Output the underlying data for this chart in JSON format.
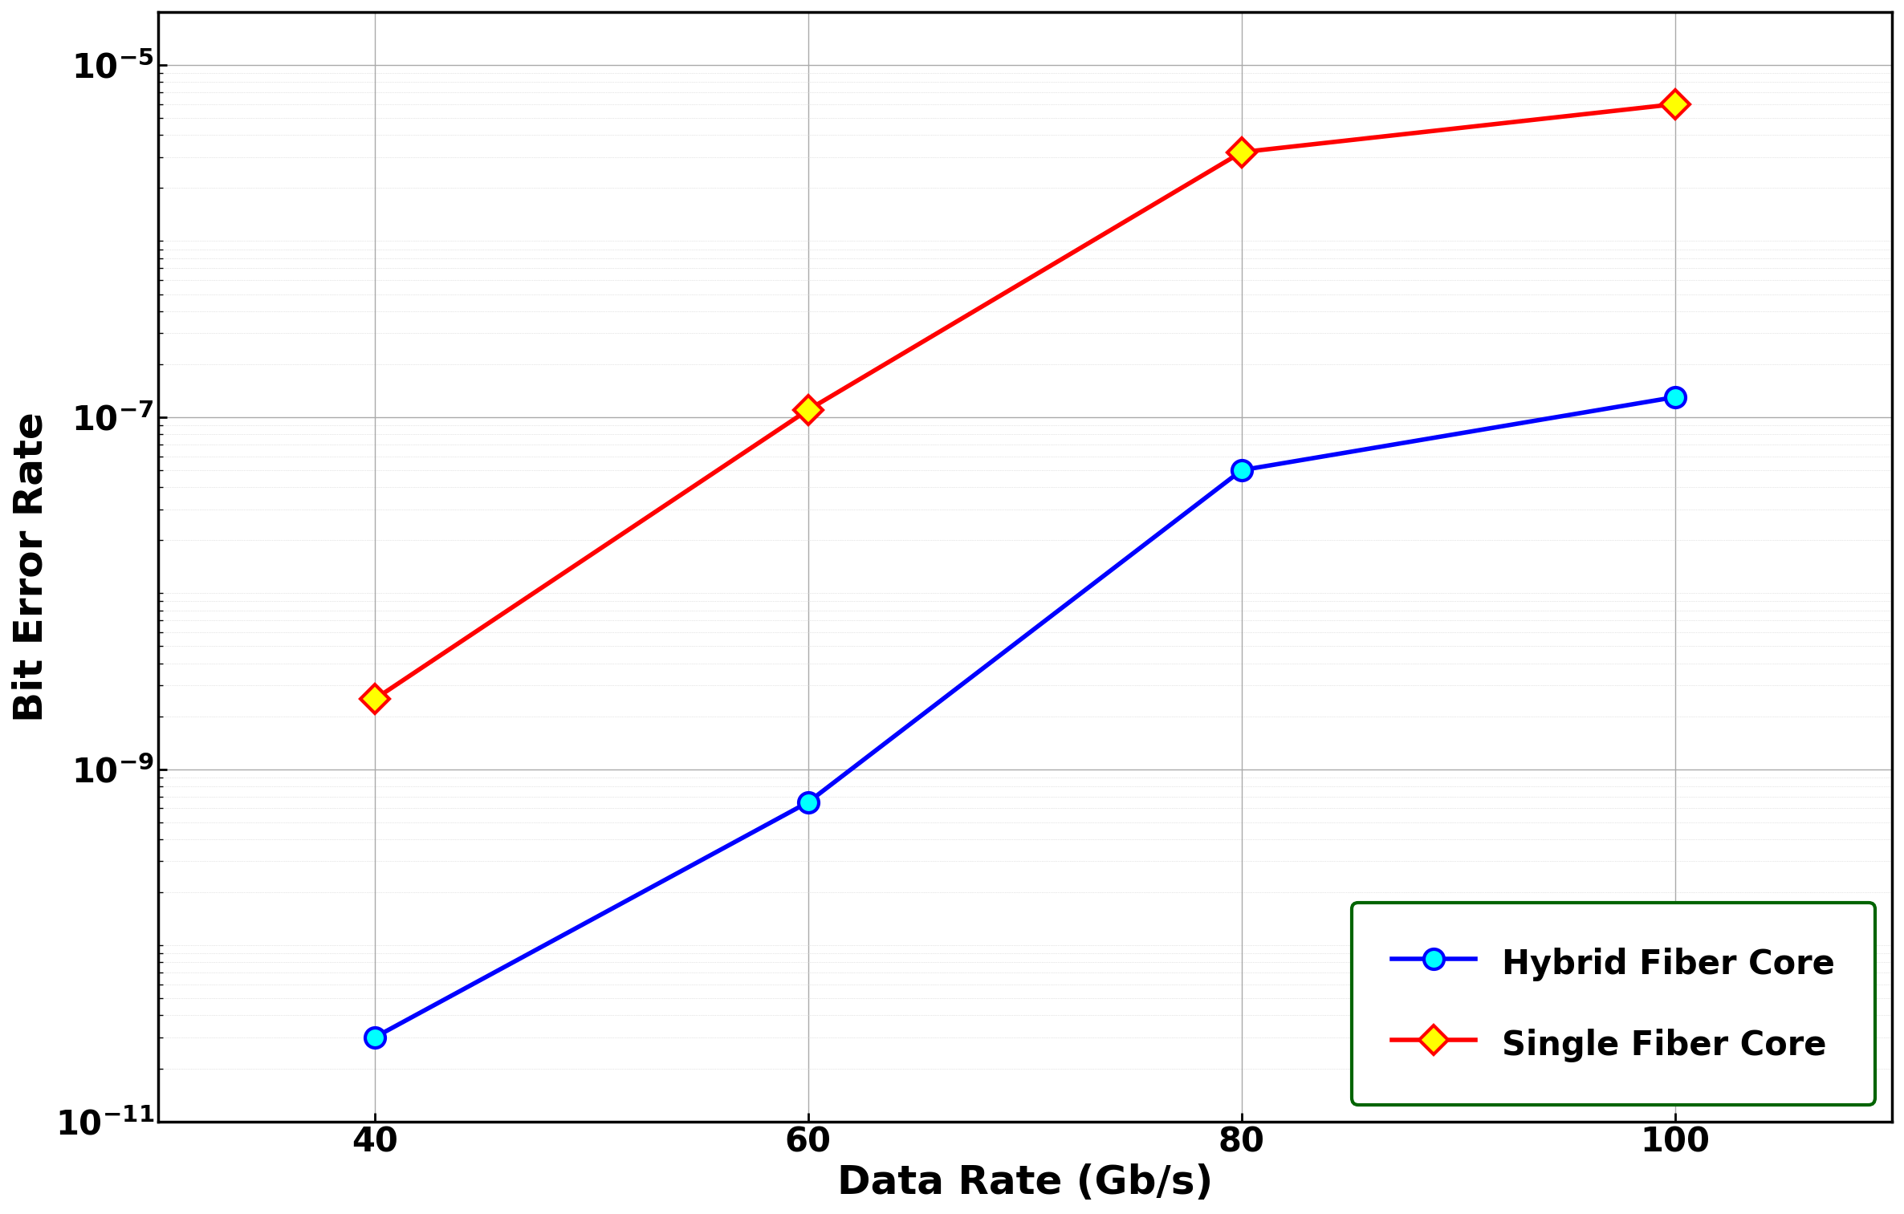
{
  "x": [
    40,
    60,
    80,
    100
  ],
  "hybrid_ber": [
    3e-11,
    6.5e-10,
    5e-08,
    1.3e-07
  ],
  "single_ber": [
    2.5e-09,
    1.1e-07,
    3.2e-06,
    6e-06
  ],
  "xlabel": "Data Rate (Gb/s)",
  "ylabel": "Bit Error Rate",
  "ylim": [
    1e-11,
    2e-05
  ],
  "xlim": [
    30,
    110
  ],
  "hybrid_color": "#0000FF",
  "single_color": "#FF0000",
  "hybrid_label": "Hybrid Fiber Core",
  "single_label": "Single Fiber Core",
  "background_color": "#FFFFFF",
  "grid_color_major": "#AAAAAA",
  "grid_color_minor": "#CCCCCC",
  "legend_edgecolor": "#006400",
  "xlabel_fontsize": 36,
  "ylabel_fontsize": 36,
  "tick_fontsize": 30,
  "legend_fontsize": 30,
  "linewidth": 4.0,
  "markersize": 18,
  "hybrid_marker_facecolor": "cyan",
  "single_marker_facecolor": "yellow"
}
